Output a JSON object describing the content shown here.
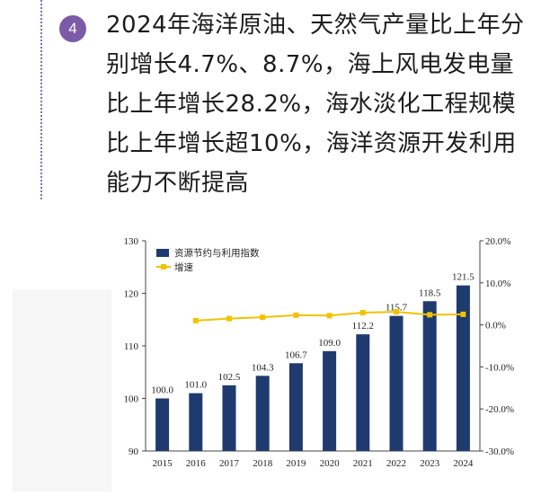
{
  "section": {
    "number": "4",
    "headline": "2024年海洋原油、天然气产量比上年分别增长4.7%、8.7%，海上风电发电量比上年增长28.2%，海水淡化工程规模比上年增长超10%，海洋资源开发利用能力不断提高"
  },
  "colors": {
    "accent": "#7b5aa6",
    "bar": "#1f3a6e",
    "line": "#f2c200"
  },
  "chart_data": {
    "type": "bar",
    "title": "",
    "categories": [
      "2015",
      "2016",
      "2017",
      "2018",
      "2019",
      "2020",
      "2021",
      "2022",
      "2023",
      "2024"
    ],
    "series": [
      {
        "name": "资源节约与利用指数",
        "type": "bar",
        "axis": "left",
        "values": [
          100.0,
          101.0,
          102.5,
          104.3,
          106.7,
          109.0,
          112.2,
          115.7,
          118.5,
          121.5
        ],
        "data_labels": [
          "100.0",
          "101.0",
          "102.5",
          "104.3",
          "106.7",
          "109.0",
          "112.2",
          "115.7",
          "118.5",
          "121.5"
        ]
      },
      {
        "name": "增速",
        "type": "line",
        "axis": "right",
        "values": [
          null,
          1.0,
          1.5,
          1.8,
          2.3,
          2.2,
          2.9,
          3.1,
          2.4,
          2.5
        ]
      }
    ],
    "y_left": {
      "min": 90,
      "max": 130,
      "ticks": [
        "90",
        "100",
        "110",
        "120",
        "130"
      ],
      "tick_values": [
        90,
        100,
        110,
        120,
        130
      ]
    },
    "y_right": {
      "min": -30,
      "max": 20,
      "ticks": [
        "-30.0%",
        "-20.0%",
        "-10.0%",
        "0.0%",
        "10.0%",
        "20.0%"
      ],
      "tick_values": [
        -30,
        -20,
        -10,
        0,
        10,
        20
      ]
    },
    "grid": false,
    "legend_position": "top-left"
  }
}
